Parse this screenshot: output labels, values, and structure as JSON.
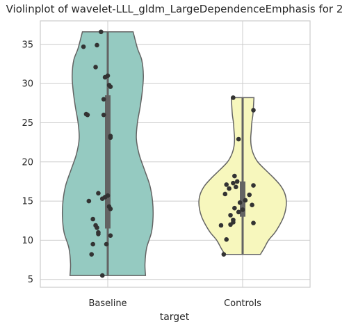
{
  "chart_data": {
    "type": "violin",
    "title": "Violinplot of wavelet-LLL_gldm_LargeDependenceEmphasis for 2",
    "xlabel": "target",
    "ylabel": "",
    "ylim": [
      4.0,
      38.0
    ],
    "yticks": [
      5,
      10,
      15,
      20,
      25,
      30,
      35
    ],
    "grid": true,
    "categories": [
      "Baseline",
      "Controls"
    ],
    "colors": [
      "#95cac1",
      "#f7f7bd"
    ],
    "series": [
      {
        "category": "Baseline",
        "min": 5.5,
        "q1": 11.5,
        "median": 15.3,
        "q3": 28.5,
        "max": 36.6,
        "points": [
          {
            "x": 0.45,
            "y": 36.6
          },
          {
            "x": 0.42,
            "y": 34.9
          },
          {
            "x": 0.32,
            "y": 34.7
          },
          {
            "x": 0.41,
            "y": 32.1
          },
          {
            "x": 0.5,
            "y": 31.0
          },
          {
            "x": 0.48,
            "y": 30.8
          },
          {
            "x": 0.51,
            "y": 29.8
          },
          {
            "x": 0.52,
            "y": 29.6
          },
          {
            "x": 0.47,
            "y": 28.0
          },
          {
            "x": 0.34,
            "y": 26.1
          },
          {
            "x": 0.35,
            "y": 26.0
          },
          {
            "x": 0.47,
            "y": 26.0
          },
          {
            "x": 0.52,
            "y": 23.3
          },
          {
            "x": 0.52,
            "y": 23.1
          },
          {
            "x": 0.43,
            "y": 16.0
          },
          {
            "x": 0.5,
            "y": 15.7
          },
          {
            "x": 0.48,
            "y": 15.5
          },
          {
            "x": 0.46,
            "y": 15.3
          },
          {
            "x": 0.36,
            "y": 15.0
          },
          {
            "x": 0.51,
            "y": 14.3
          },
          {
            "x": 0.52,
            "y": 14.0
          },
          {
            "x": 0.39,
            "y": 12.7
          },
          {
            "x": 0.41,
            "y": 11.9
          },
          {
            "x": 0.42,
            "y": 11.6
          },
          {
            "x": 0.43,
            "y": 11.0
          },
          {
            "x": 0.43,
            "y": 10.8
          },
          {
            "x": 0.52,
            "y": 10.6
          },
          {
            "x": 0.39,
            "y": 9.5
          },
          {
            "x": 0.49,
            "y": 9.5
          },
          {
            "x": 0.38,
            "y": 8.2
          },
          {
            "x": 0.46,
            "y": 5.5
          }
        ],
        "density": [
          [
            5.5,
            0.7
          ],
          [
            7.0,
            0.69
          ],
          [
            9.0,
            0.72
          ],
          [
            11.0,
            0.81
          ],
          [
            13.0,
            0.84
          ],
          [
            15.0,
            0.83
          ],
          [
            17.0,
            0.78
          ],
          [
            19.0,
            0.68
          ],
          [
            21.0,
            0.58
          ],
          [
            23.0,
            0.53
          ],
          [
            25.0,
            0.55
          ],
          [
            27.0,
            0.6
          ],
          [
            29.0,
            0.64
          ],
          [
            31.0,
            0.66
          ],
          [
            33.0,
            0.63
          ],
          [
            34.5,
            0.55
          ],
          [
            36.6,
            0.47
          ]
        ]
      },
      {
        "category": "Controls",
        "min": 8.2,
        "q1": 13.0,
        "median": 14.5,
        "q3": 17.5,
        "max": 28.2,
        "points": [
          {
            "x": 1.43,
            "y": 28.2
          },
          {
            "x": 1.58,
            "y": 26.6
          },
          {
            "x": 1.47,
            "y": 22.9
          },
          {
            "x": 1.44,
            "y": 18.2
          },
          {
            "x": 1.46,
            "y": 17.5
          },
          {
            "x": 1.43,
            "y": 17.3
          },
          {
            "x": 1.38,
            "y": 17.1
          },
          {
            "x": 1.58,
            "y": 17.0
          },
          {
            "x": 1.45,
            "y": 16.8
          },
          {
            "x": 1.4,
            "y": 16.6
          },
          {
            "x": 1.37,
            "y": 15.9
          },
          {
            "x": 1.55,
            "y": 15.8
          },
          {
            "x": 1.52,
            "y": 15.1
          },
          {
            "x": 1.48,
            "y": 14.8
          },
          {
            "x": 1.57,
            "y": 14.5
          },
          {
            "x": 1.44,
            "y": 14.1
          },
          {
            "x": 1.5,
            "y": 13.9
          },
          {
            "x": 1.47,
            "y": 13.6
          },
          {
            "x": 1.41,
            "y": 13.2
          },
          {
            "x": 1.43,
            "y": 12.6
          },
          {
            "x": 1.43,
            "y": 12.3
          },
          {
            "x": 1.58,
            "y": 12.2
          },
          {
            "x": 1.41,
            "y": 12.0
          },
          {
            "x": 1.34,
            "y": 11.9
          },
          {
            "x": 1.38,
            "y": 10.1
          },
          {
            "x": 1.36,
            "y": 8.2
          }
        ],
        "density": [
          [
            8.2,
            0.33
          ],
          [
            9.0,
            0.4
          ],
          [
            10.0,
            0.48
          ],
          [
            11.0,
            0.6
          ],
          [
            12.0,
            0.69
          ],
          [
            13.0,
            0.76
          ],
          [
            14.0,
            0.8
          ],
          [
            15.0,
            0.81
          ],
          [
            16.0,
            0.78
          ],
          [
            17.0,
            0.7
          ],
          [
            18.0,
            0.57
          ],
          [
            19.0,
            0.42
          ],
          [
            20.0,
            0.28
          ],
          [
            21.0,
            0.2
          ],
          [
            22.0,
            0.16
          ],
          [
            23.0,
            0.15
          ],
          [
            24.0,
            0.16
          ],
          [
            25.0,
            0.17
          ],
          [
            26.0,
            0.19
          ],
          [
            27.0,
            0.2
          ],
          [
            28.2,
            0.21
          ]
        ]
      }
    ]
  }
}
